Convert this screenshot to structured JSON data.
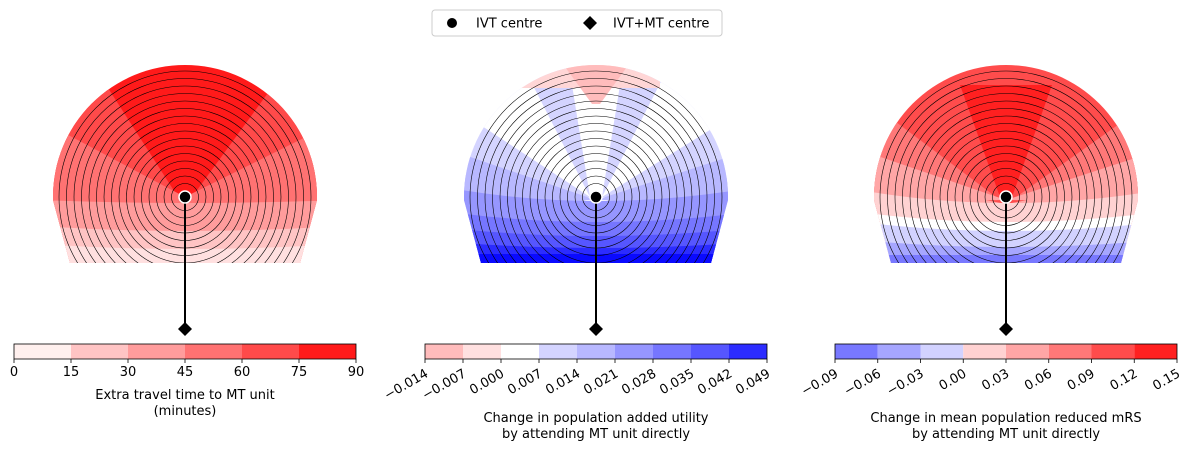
{
  "legend": {
    "items": [
      {
        "label": "IVT centre",
        "marker": "circle"
      },
      {
        "label": "IVT+MT centre",
        "marker": "diamond"
      }
    ],
    "placement": "top-center"
  },
  "chart_data": [
    {
      "type": "heatmap",
      "metric": "travel_time",
      "colorbar_label_lines": [
        "Extra travel time to MT unit",
        "(minutes)"
      ],
      "colorbar_ticks": [
        "0",
        "15",
        "30",
        "45",
        "60",
        "75",
        "90"
      ],
      "tick_rotation": 0,
      "range": [
        0,
        90
      ],
      "bins": [
        {
          "from": 0,
          "to": 15,
          "color": "#fff0ee"
        },
        {
          "from": 15,
          "to": 30,
          "color": "#ffc4c4"
        },
        {
          "from": 30,
          "to": 45,
          "color": "#ff9c9c"
        },
        {
          "from": 45,
          "to": 60,
          "color": "#ff7272"
        },
        {
          "from": 60,
          "to": 75,
          "color": "#ff4a4a"
        },
        {
          "from": 75,
          "to": 90,
          "color": "#ff1a1a"
        }
      ]
    },
    {
      "type": "heatmap",
      "metric": "utility",
      "colorbar_label_lines": [
        "Change in population added utility",
        "by attending MT unit directly"
      ],
      "colorbar_ticks": [
        "−0.014",
        "−0.007",
        "0.000",
        "0.007",
        "0.014",
        "0.021",
        "0.028",
        "0.035",
        "0.042",
        "0.049"
      ],
      "tick_rotation": -30,
      "range": [
        -0.014,
        0.049
      ],
      "bins": [
        {
          "from": -0.014,
          "to": -0.007,
          "color": "#ffbcbc"
        },
        {
          "from": -0.007,
          "to": 0.0,
          "color": "#ffe0e0"
        },
        {
          "from": 0.0,
          "to": 0.007,
          "color": "#ffffff"
        },
        {
          "from": 0.007,
          "to": 0.014,
          "color": "#d4d4ff"
        },
        {
          "from": 0.014,
          "to": 0.021,
          "color": "#b8b8ff"
        },
        {
          "from": 0.021,
          "to": 0.028,
          "color": "#9696ff"
        },
        {
          "from": 0.028,
          "to": 0.035,
          "color": "#7676ff"
        },
        {
          "from": 0.035,
          "to": 0.042,
          "color": "#5656ff"
        },
        {
          "from": 0.042,
          "to": 0.049,
          "color": "#2c2cff"
        }
      ]
    },
    {
      "type": "heatmap",
      "metric": "mrs",
      "colorbar_label_lines": [
        "Change in mean population reduced mRS",
        "by attending MT unit directly"
      ],
      "colorbar_ticks": [
        "−0.09",
        "−0.06",
        "−0.03",
        "0.00",
        "0.03",
        "0.06",
        "0.09",
        "0.12",
        "0.15"
      ],
      "tick_rotation": -30,
      "range": [
        -0.09,
        0.15
      ],
      "bins": [
        {
          "from": -0.09,
          "to": -0.06,
          "color": "#7878ff"
        },
        {
          "from": -0.06,
          "to": -0.03,
          "color": "#a6a6ff"
        },
        {
          "from": -0.03,
          "to": 0.0,
          "color": "#d2d2ff"
        },
        {
          "from": 0.0,
          "to": 0.03,
          "color": "#ffd2d2"
        },
        {
          "from": 0.03,
          "to": 0.06,
          "color": "#ffa6a6"
        },
        {
          "from": 0.06,
          "to": 0.09,
          "color": "#ff7878"
        },
        {
          "from": 0.09,
          "to": 0.12,
          "color": "#ff4c4c"
        },
        {
          "from": 0.12,
          "to": 0.15,
          "color": "#ff2020"
        }
      ]
    }
  ]
}
